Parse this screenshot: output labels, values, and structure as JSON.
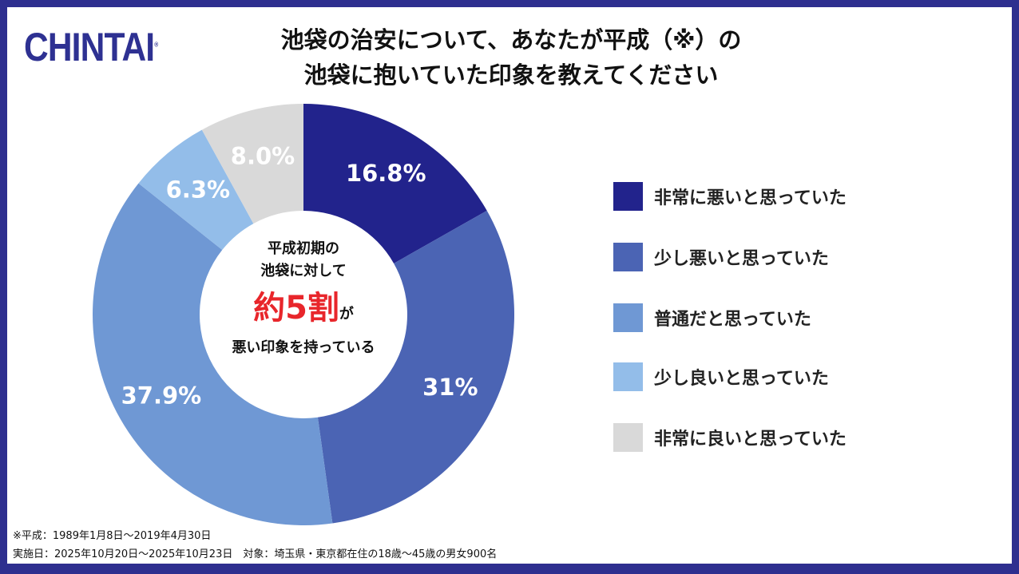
{
  "logo": "CHINTAI",
  "title": [
    "池袋の治安について、あなたが平成（※）の",
    "池袋に抱いていた印象を教えてください"
  ],
  "center": {
    "line1": "平成初期の",
    "line2": "池袋に対して",
    "highlight": "約5割",
    "particle": "が",
    "line4": "悪い印象を持っている"
  },
  "footer": {
    "note": "※平成：1989年1月8日～2019年4月30日",
    "survey": "実施日：2025年10月20日～2025年10月23日　対象：埼玉県・東京都在住の18歳～45歳の男女900名"
  },
  "chart_data": {
    "type": "pie",
    "donut": true,
    "start": "top, clockwise",
    "categories": [
      "非常に悪いと思っていた",
      "少し悪いと思っていた",
      "普通だと思っていた",
      "少し良いと思っていた",
      "非常に良いと思っていた"
    ],
    "values": [
      16.8,
      31,
      37.9,
      6.3,
      8.0
    ],
    "labels": [
      "16.8%",
      "31%",
      "37.9%",
      "6.3%",
      "8.0%"
    ],
    "colors": [
      "#22238c",
      "#4b64b4",
      "#6f98d4",
      "#93bde9",
      "#d9d9d9"
    ],
    "legend_position": "right"
  }
}
